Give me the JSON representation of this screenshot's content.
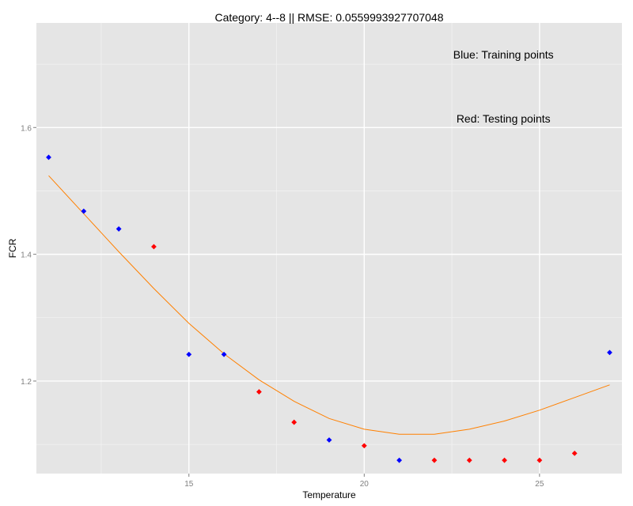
{
  "chart_data": {
    "type": "scatter",
    "title": "Category: 4--8 || RMSE: 0.0559993927707048",
    "xlabel": "Temperature",
    "ylabel": "FCR",
    "xlim": [
      10.65,
      27.35
    ],
    "ylim": [
      1.054,
      1.765
    ],
    "x_ticks": [
      15,
      20,
      25
    ],
    "y_ticks": [
      1.2,
      1.4,
      1.6
    ],
    "x_tick_labels": [
      "15",
      "20",
      "25"
    ],
    "y_tick_labels": [
      "1.2",
      "1.4",
      "1.6"
    ],
    "grid": true,
    "annotations": [
      {
        "text": "Blue: Training points",
        "x": 23.97,
        "y": 1.715
      },
      {
        "text": "Red: Testing points",
        "x": 23.97,
        "y": 1.614
      }
    ],
    "series": [
      {
        "kind": "points",
        "color": "#0000ff",
        "x": [
          11,
          12,
          13,
          15,
          16,
          19,
          21,
          27
        ],
        "y": [
          1.553,
          1.468,
          1.44,
          1.242,
          1.242,
          1.107,
          1.075,
          1.245
        ]
      },
      {
        "kind": "points",
        "color": "#ff0000",
        "x": [
          14,
          17,
          18,
          20,
          22,
          23,
          24,
          25,
          26
        ],
        "y": [
          1.412,
          1.183,
          1.135,
          1.098,
          1.075,
          1.075,
          1.075,
          1.075,
          1.086
        ]
      },
      {
        "kind": "line",
        "color": "#ff8000",
        "x": [
          11,
          12,
          13,
          14,
          15,
          16,
          17,
          18,
          19,
          20,
          21,
          22,
          23,
          24,
          25,
          26,
          27
        ],
        "y": [
          1.524,
          1.464,
          1.404,
          1.346,
          1.291,
          1.243,
          1.202,
          1.168,
          1.141,
          1.124,
          1.116,
          1.116,
          1.124,
          1.137,
          1.154,
          1.174,
          1.194
        ]
      }
    ]
  }
}
